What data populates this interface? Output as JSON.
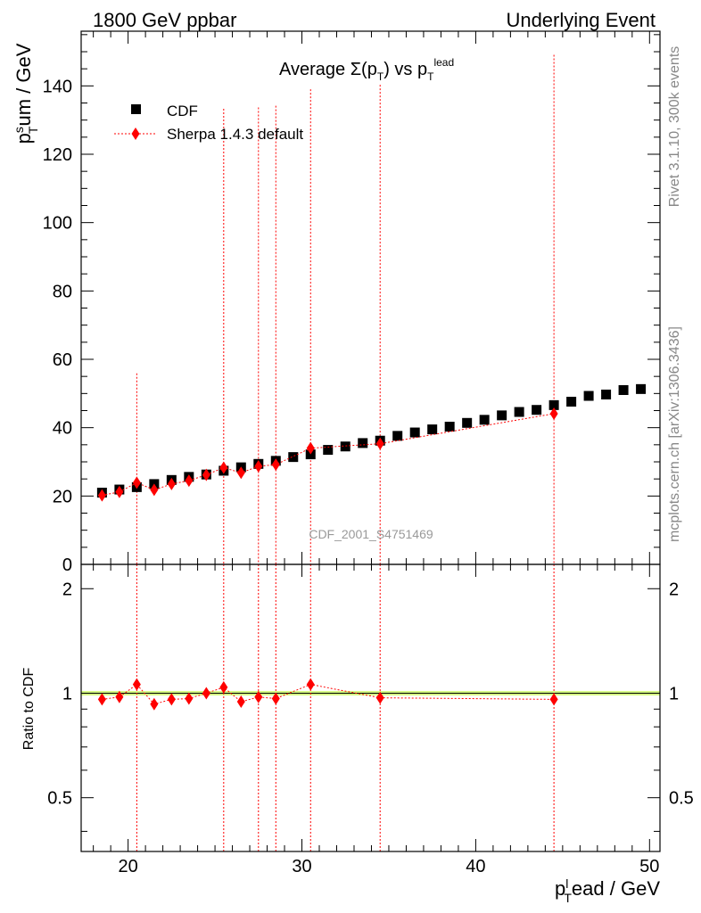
{
  "header": {
    "left": "1800 GeV ppbar",
    "right": "Underlying Event"
  },
  "side_labels": {
    "rivet": "Rivet 3.1.10,  300k events",
    "mcplots": "mcplots.cern.ch [arXiv:1306.3436]"
  },
  "watermark": "CDF_2001_S4751469",
  "chart_data": [
    {
      "panel": "main",
      "type": "scatter",
      "title": "Average Σ(pₜ) vs pₜˡᵉᵃᵈ",
      "xlabel": "pₜˡead / GeV",
      "ylabel": "pₜˢum / GeV",
      "xlim": [
        17.3,
        50.6
      ],
      "ylim": [
        0,
        156
      ],
      "x_ticks": [
        20,
        30,
        40,
        50
      ],
      "y_ticks": [
        0,
        20,
        40,
        60,
        80,
        100,
        120,
        140
      ],
      "legend": {
        "placement": "top-left",
        "entries": [
          "CDF",
          "Sherpa 1.4.3 default"
        ]
      },
      "series": [
        {
          "name": "CDF",
          "marker": "square",
          "color": "#000000",
          "x": [
            18.5,
            19.5,
            20.5,
            21.5,
            22.5,
            23.5,
            24.5,
            25.5,
            26.5,
            27.5,
            28.5,
            29.5,
            30.5,
            31.5,
            32.5,
            33.5,
            34.5,
            35.5,
            36.5,
            37.5,
            38.5,
            39.5,
            40.5,
            41.5,
            42.5,
            43.5,
            44.5,
            45.5,
            46.5,
            47.5,
            48.5,
            49.5
          ],
          "y": [
            21.0,
            21.9,
            22.6,
            23.5,
            24.7,
            25.6,
            26.3,
            27.4,
            28.4,
            29.4,
            30.3,
            31.4,
            32.2,
            33.5,
            34.5,
            35.5,
            36.2,
            37.6,
            38.6,
            39.5,
            40.3,
            41.4,
            42.3,
            43.6,
            44.6,
            45.2,
            46.6,
            47.6,
            49.3,
            49.7,
            51.0,
            51.3
          ]
        },
        {
          "name": "Sherpa 1.4.3 default",
          "marker": "diamond",
          "line": "dotted",
          "color": "#ff0000",
          "x": [
            18.5,
            19.5,
            20.5,
            21.5,
            22.5,
            23.5,
            24.5,
            25.5,
            26.5,
            27.5,
            28.5,
            30.5,
            34.5,
            44.5
          ],
          "y": [
            20.2,
            21.2,
            23.9,
            21.8,
            23.5,
            24.5,
            26.2,
            28.3,
            26.8,
            28.7,
            29.2,
            34.0,
            35.3,
            44.1
          ],
          "yerr": [
            0,
            0,
            32.0,
            0,
            0,
            0,
            0,
            105,
            0,
            105,
            105,
            105,
            105,
            105
          ]
        }
      ]
    },
    {
      "panel": "ratio",
      "type": "scatter",
      "ylabel": "Ratio to CDF",
      "xlabel": "pₜˡead / GeV",
      "xlim": [
        17.3,
        50.6
      ],
      "ylim": [
        0.35,
        2.35
      ],
      "y_scale": "log",
      "y_ticks": [
        0.5,
        1,
        2
      ],
      "x_ticks": [
        20,
        30,
        40,
        50
      ],
      "reference_band": {
        "color": "#ccff66",
        "lo": 0.985,
        "hi": 1.015
      },
      "series": [
        {
          "name": "Sherpa 1.4.3 default",
          "marker": "diamond",
          "line": "dotted",
          "color": "#ff0000",
          "x": [
            18.5,
            19.5,
            20.5,
            21.5,
            22.5,
            23.5,
            24.5,
            25.5,
            26.5,
            27.5,
            28.5,
            30.5,
            34.5,
            44.5
          ],
          "y": [
            0.96,
            0.975,
            1.06,
            0.93,
            0.96,
            0.965,
            1.0,
            1.04,
            0.945,
            0.975,
            0.965,
            1.06,
            0.97,
            0.96
          ]
        }
      ]
    }
  ]
}
